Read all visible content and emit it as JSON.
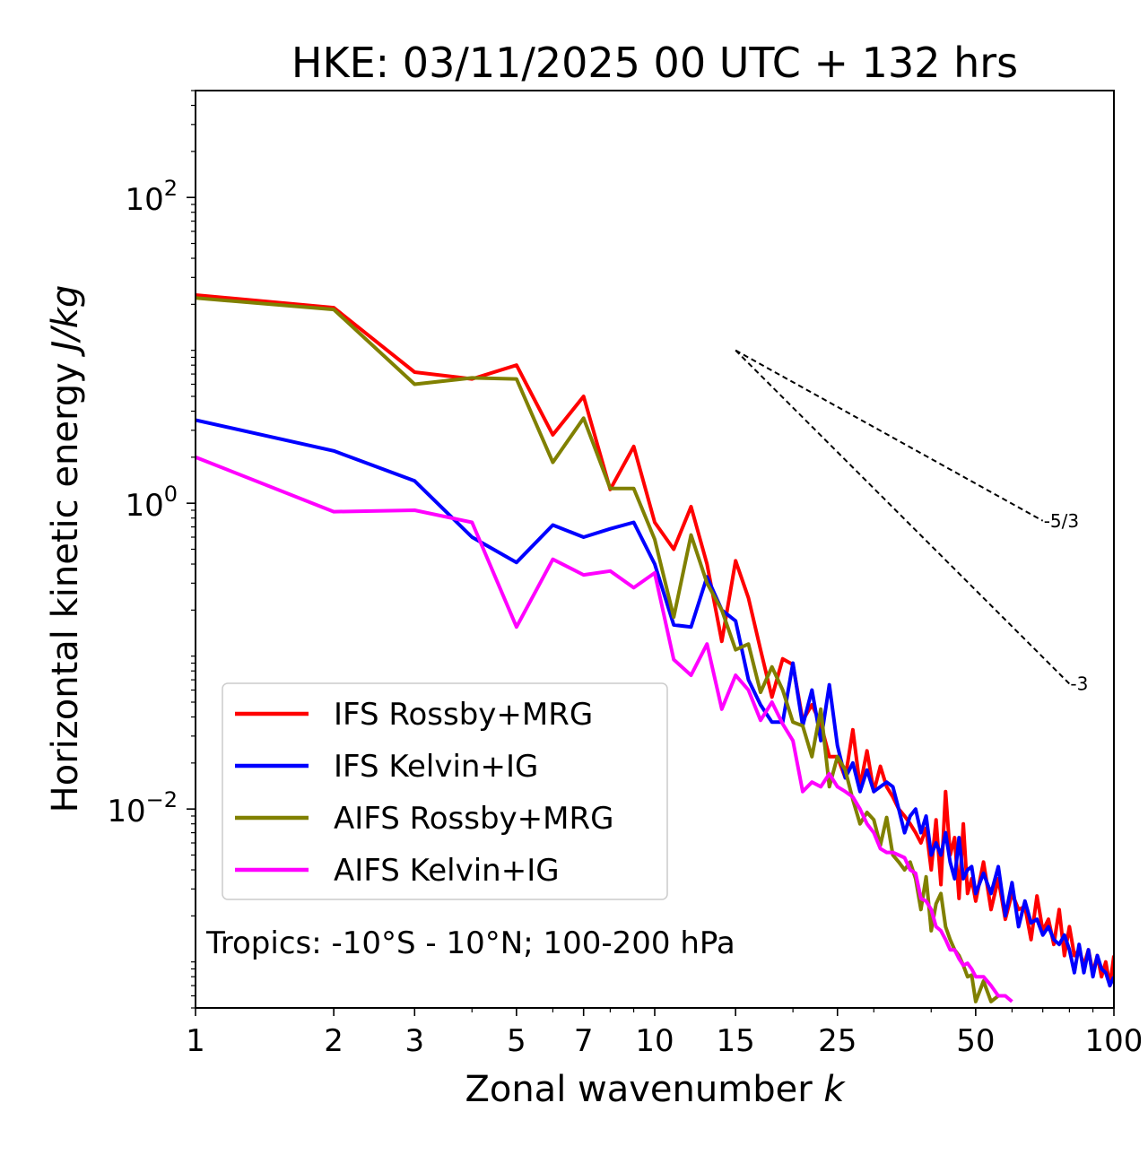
{
  "chart_data": {
    "type": "line",
    "title": "HKE: 03/11/2025 00 UTC + 132 hrs",
    "xlabel": "Zonal wavenumber",
    "xlabel_symbol": "k",
    "ylabel": "Horizontal kinetic energy",
    "ylabel_units": "J/kg",
    "xscale": "log",
    "yscale": "log",
    "xlim": [
      1,
      100
    ],
    "ylim": [
      0.0005,
      500
    ],
    "xticks": [
      {
        "value": 1,
        "label": "1"
      },
      {
        "value": 2,
        "label": "2"
      },
      {
        "value": 3,
        "label": "3"
      },
      {
        "value": 5,
        "label": "5"
      },
      {
        "value": 7,
        "label": "7"
      },
      {
        "value": 10,
        "label": "10"
      },
      {
        "value": 15,
        "label": "15"
      },
      {
        "value": 25,
        "label": "25"
      },
      {
        "value": 50,
        "label": "50"
      },
      {
        "value": 100,
        "label": "100"
      }
    ],
    "yticks": [
      {
        "value": 100,
        "base": "10",
        "exp": "2"
      },
      {
        "value": 1,
        "base": "10",
        "exp": "0"
      },
      {
        "value": 0.01,
        "base": "10",
        "exp": "−2"
      }
    ],
    "annotation": "Tropics: -10°S - 10°N; 100-200 hPa",
    "legend_position": "lower-left",
    "reference_lines": [
      {
        "label": "-5/3",
        "slope": -1.6667,
        "x_start": 15,
        "x_end": 70,
        "y_start": 10
      },
      {
        "label": "-3",
        "slope": -3,
        "x_start": 15,
        "x_end": 80,
        "y_start": 10
      }
    ],
    "series": [
      {
        "name": "IFS Rossby+MRG",
        "color": "#ff0000",
        "x": [
          1,
          2,
          3,
          4,
          5,
          6,
          7,
          8,
          9,
          10,
          11,
          12,
          13,
          14,
          15,
          16,
          17,
          18,
          19,
          20,
          21,
          22,
          23,
          24,
          25,
          26,
          27,
          28,
          29,
          30,
          31,
          32,
          33,
          34,
          35,
          36,
          37,
          38,
          39,
          40,
          41,
          42,
          43,
          44,
          45,
          46,
          47,
          48,
          49,
          50,
          52,
          54,
          56,
          58,
          60,
          62,
          64,
          66,
          68,
          70,
          72,
          74,
          76,
          78,
          80,
          82,
          84,
          86,
          88,
          90,
          92,
          94,
          96,
          98,
          100
        ],
        "y": [
          23,
          19,
          7.2,
          6.5,
          8,
          2.8,
          5,
          1.23,
          2.35,
          0.75,
          0.5,
          0.95,
          0.4,
          0.125,
          0.42,
          0.24,
          0.11,
          0.054,
          0.096,
          0.088,
          0.038,
          0.048,
          0.036,
          0.022,
          0.022,
          0.016,
          0.033,
          0.014,
          0.024,
          0.013,
          0.019,
          0.014,
          0.012,
          0.01,
          0.009,
          0.008,
          0.007,
          0.006,
          0.0075,
          0.004,
          0.0085,
          0.0032,
          0.013,
          0.005,
          0.0065,
          0.0026,
          0.008,
          0.0028,
          0.0035,
          0.0025,
          0.0045,
          0.0022,
          0.0035,
          0.0019,
          0.0028,
          0.0022,
          0.0023,
          0.0014,
          0.0027,
          0.0016,
          0.0019,
          0.0013,
          0.0022,
          0.0011,
          0.0017,
          0.0011,
          0.0012,
          0.00095,
          0.0012,
          0.00085,
          0.0011,
          0.0008,
          0.001,
          0.0007,
          0.0011
        ]
      },
      {
        "name": "IFS Kelvin+IG",
        "color": "#0000ff",
        "x": [
          1,
          2,
          3,
          4,
          5,
          6,
          7,
          8,
          9,
          10,
          11,
          12,
          13,
          14,
          15,
          16,
          17,
          18,
          19,
          20,
          21,
          22,
          23,
          24,
          25,
          26,
          27,
          28,
          29,
          30,
          31,
          32,
          33,
          34,
          35,
          36,
          37,
          38,
          39,
          40,
          41,
          42,
          43,
          44,
          45,
          46,
          47,
          48,
          49,
          50,
          52,
          54,
          56,
          58,
          60,
          62,
          64,
          66,
          68,
          70,
          72,
          74,
          76,
          78,
          80,
          82,
          84,
          86,
          88,
          90,
          92,
          94,
          96,
          98,
          100
        ],
        "y": [
          3.5,
          2.2,
          1.4,
          0.6,
          0.41,
          0.72,
          0.6,
          0.68,
          0.75,
          0.4,
          0.16,
          0.155,
          0.33,
          0.2,
          0.17,
          0.07,
          0.048,
          0.037,
          0.037,
          0.09,
          0.035,
          0.06,
          0.028,
          0.065,
          0.026,
          0.016,
          0.02,
          0.013,
          0.018,
          0.013,
          0.014,
          0.015,
          0.014,
          0.01,
          0.007,
          0.009,
          0.01,
          0.007,
          0.009,
          0.005,
          0.006,
          0.005,
          0.007,
          0.0045,
          0.0035,
          0.0065,
          0.0035,
          0.004,
          0.0042,
          0.0028,
          0.0038,
          0.0028,
          0.0042,
          0.002,
          0.0033,
          0.0017,
          0.0025,
          0.0018,
          0.0019,
          0.0015,
          0.0017,
          0.0014,
          0.0013,
          0.0015,
          0.0012,
          0.00085,
          0.0013,
          0.00085,
          0.0012,
          0.0008,
          0.0011,
          0.0009,
          0.00085,
          0.0007,
          0.0008
        ]
      },
      {
        "name": "AIFS Rossby+MRG",
        "color": "#808000",
        "x": [
          1,
          2,
          3,
          4,
          5,
          6,
          7,
          8,
          9,
          10,
          11,
          12,
          13,
          14,
          15,
          16,
          17,
          18,
          19,
          20,
          21,
          22,
          23,
          24,
          25,
          26,
          27,
          28,
          29,
          30,
          31,
          32,
          33,
          34,
          35,
          36,
          37,
          38,
          39,
          40,
          41,
          42,
          43,
          44,
          45,
          46,
          47,
          48,
          49,
          50,
          52,
          54,
          56
        ],
        "y": [
          22,
          18.5,
          6,
          6.6,
          6.5,
          1.85,
          3.6,
          1.25,
          1.25,
          0.58,
          0.18,
          0.62,
          0.3,
          0.2,
          0.11,
          0.12,
          0.058,
          0.085,
          0.06,
          0.037,
          0.035,
          0.022,
          0.045,
          0.014,
          0.022,
          0.018,
          0.0115,
          0.008,
          0.0095,
          0.0085,
          0.0058,
          0.0088,
          0.005,
          0.0045,
          0.004,
          0.0045,
          0.0035,
          0.0022,
          0.0036,
          0.0016,
          0.0024,
          0.0028,
          0.0017,
          0.0014,
          0.0012,
          0.0011,
          0.00095,
          0.0008,
          0.00082,
          0.00055,
          0.00075,
          0.00055,
          0.0006
        ]
      },
      {
        "name": "AIFS Kelvin+IG",
        "color": "#ff00ff",
        "x": [
          1,
          2,
          3,
          4,
          5,
          6,
          7,
          8,
          9,
          10,
          11,
          12,
          13,
          14,
          15,
          16,
          17,
          18,
          19,
          20,
          21,
          22,
          23,
          24,
          25,
          26,
          27,
          28,
          29,
          30,
          31,
          32,
          33,
          34,
          35,
          36,
          37,
          38,
          39,
          40,
          41,
          42,
          43,
          44,
          45,
          46,
          47,
          48,
          49,
          50,
          52,
          54,
          56,
          58,
          60
        ],
        "y": [
          2,
          0.88,
          0.9,
          0.75,
          0.155,
          0.43,
          0.34,
          0.36,
          0.28,
          0.35,
          0.095,
          0.075,
          0.12,
          0.045,
          0.075,
          0.06,
          0.038,
          0.05,
          0.036,
          0.028,
          0.013,
          0.015,
          0.014,
          0.017,
          0.014,
          0.013,
          0.012,
          0.01,
          0.008,
          0.007,
          0.0055,
          0.0052,
          0.0052,
          0.005,
          0.0048,
          0.004,
          0.0038,
          0.0026,
          0.0025,
          0.0022,
          0.0017,
          0.0016,
          0.0014,
          0.0012,
          0.0012,
          0.00105,
          0.00095,
          0.00098,
          0.0009,
          0.0008,
          0.0008,
          0.0007,
          0.0006,
          0.0006,
          0.00055
        ]
      }
    ]
  }
}
